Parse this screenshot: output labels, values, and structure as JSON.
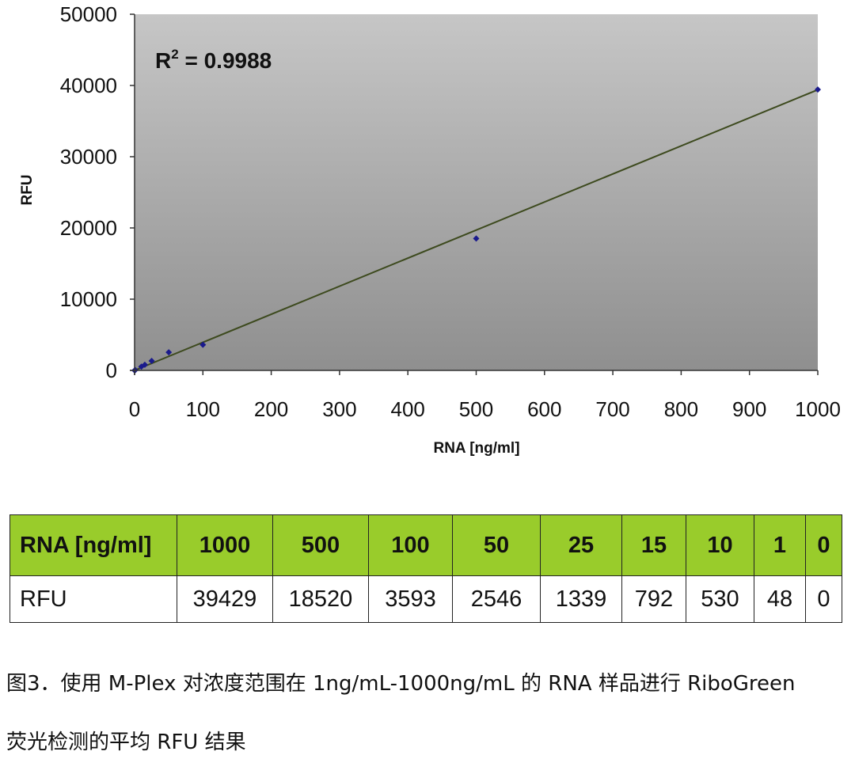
{
  "chart_data": {
    "type": "scatter",
    "x": [
      0,
      1,
      10,
      15,
      25,
      50,
      100,
      500,
      1000
    ],
    "y": [
      0,
      48,
      530,
      792,
      1339,
      2546,
      3593,
      18520,
      39429
    ],
    "trendline": {
      "type": "linear",
      "x": [
        0,
        1000
      ],
      "y": [
        0,
        39400
      ]
    },
    "annotation": {
      "r2_base": "R",
      "r2_sup": "2",
      "r2_text": " = 0.9988"
    },
    "xlabel": "RNA [ng/ml]",
    "ylabel": "RFU",
    "xlim": [
      0,
      1000
    ],
    "ylim": [
      0,
      50000
    ],
    "xticks": [
      "0",
      "100",
      "200",
      "300",
      "400",
      "500",
      "600",
      "700",
      "800",
      "900",
      "1000"
    ],
    "yticks": [
      "0",
      "10000",
      "20000",
      "30000",
      "40000",
      "50000"
    ],
    "grid": false,
    "colors": {
      "marker": "#1a1a8c",
      "trendline": "#3d4a1e",
      "plot_bg_top": "#c6c6c6",
      "plot_bg_bottom": "#8f8f8f"
    }
  },
  "table": {
    "header_label": "RNA [ng/ml]",
    "header_values": [
      "1000",
      "500",
      "100",
      "50",
      "25",
      "15",
      "10",
      "1",
      "0"
    ],
    "row_label": "RFU",
    "row_values": [
      "39429",
      "18520",
      "3593",
      "2546",
      "1339",
      "792",
      "530",
      "48",
      "0"
    ],
    "header_color": "#99cc2b"
  },
  "caption": {
    "line1": "图3．使用 M-Plex 对浓度范围在 1ng/mL-1000ng/mL 的 RNA 样品进行 RiboGreen",
    "line2": "荧光检测的平均 RFU 结果"
  }
}
